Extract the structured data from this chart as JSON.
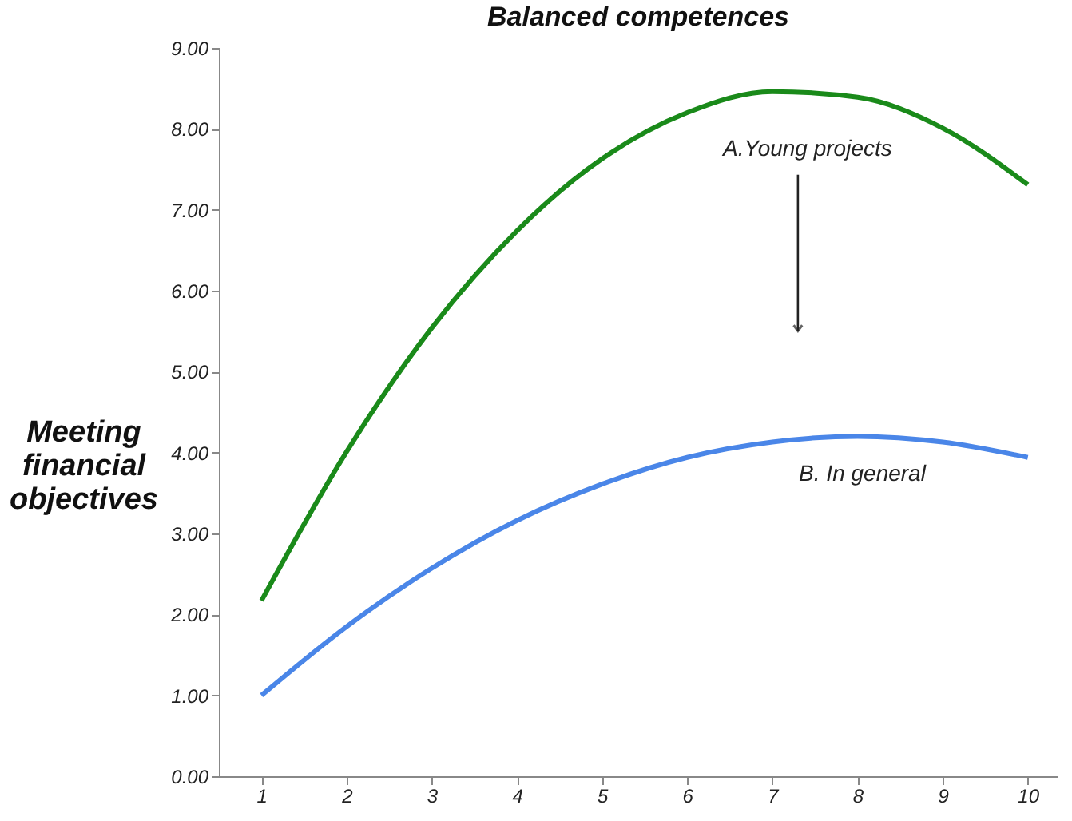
{
  "chart_data": {
    "type": "line",
    "title": "Balanced competences",
    "ylabel": "Meeting financial objectives",
    "x": [
      1,
      2,
      3,
      4,
      5,
      6,
      7,
      8,
      9,
      10
    ],
    "series": [
      {
        "name": "A.Young projects",
        "color": "#1a8a1a",
        "values": [
          2.17,
          4.01,
          5.54,
          6.74,
          7.63,
          8.2,
          8.46,
          8.39,
          8.01,
          7.31
        ]
      },
      {
        "name": "B. In general",
        "color": "#4a86e8",
        "values": [
          1.0,
          1.85,
          2.57,
          3.16,
          3.61,
          3.94,
          4.13,
          4.2,
          4.13,
          3.94
        ]
      }
    ],
    "xlim": [
      0.5,
      10.35
    ],
    "ylim": [
      0,
      9
    ],
    "xticks": [
      1,
      2,
      3,
      4,
      5,
      6,
      7,
      8,
      9,
      10
    ],
    "yticks": [
      {
        "value": 0,
        "label": "0.00"
      },
      {
        "value": 1,
        "label": "1.00"
      },
      {
        "value": 2,
        "label": "2.00"
      },
      {
        "value": 3,
        "label": "3.00"
      },
      {
        "value": 4,
        "label": "4.00"
      },
      {
        "value": 5,
        "label": "5.00"
      },
      {
        "value": 6,
        "label": "6.00"
      },
      {
        "value": 7,
        "label": "7.00"
      },
      {
        "value": 8,
        "label": "8.00"
      },
      {
        "value": 9,
        "label": "9.00"
      }
    ],
    "grid": false,
    "legend": false,
    "marker": "none",
    "line_style": "solid"
  }
}
